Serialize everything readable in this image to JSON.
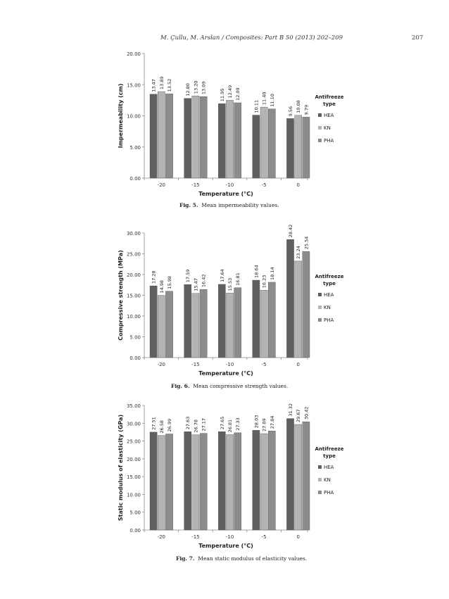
{
  "header": {
    "running_head": "M. Çullu, M. Arslan / Composites: Part B 50 (2013) 202–209",
    "page_number": "207"
  },
  "colors": {
    "HEA": "#5f5f5f",
    "KN": "#b3b3b3",
    "PHA": "#8c8c8c",
    "axis": "#888888"
  },
  "figures": [
    {
      "caption_label": "Fig. 5.",
      "caption_text": "Mean impermeability values."
    },
    {
      "caption_label": "Fig. 6.",
      "caption_text": "Mean compressive strength values."
    },
    {
      "caption_label": "Fig. 7.",
      "caption_text": "Mean static modulus of elasticity values."
    }
  ],
  "chart_data": [
    {
      "type": "bar",
      "categories": [
        "-20",
        "-15",
        "-10",
        "-5",
        "0"
      ],
      "series": [
        {
          "name": "HEA",
          "values": [
            13.47,
            12.8,
            11.95,
            10.11,
            9.56
          ],
          "labels": [
            "13.47",
            "12.80",
            "11.95",
            "10.11",
            "9.56"
          ]
        },
        {
          "name": "KN",
          "values": [
            13.89,
            13.2,
            12.49,
            11.4,
            10.08
          ],
          "labels": [
            "13.89",
            "13.20",
            "12.49",
            "11.40",
            "10.08"
          ]
        },
        {
          "name": "PHA",
          "values": [
            13.52,
            13.09,
            12.09,
            11.1,
            9.79
          ],
          "labels": [
            "13.52",
            "13.09",
            "12.09",
            "11.10",
            "9.79"
          ]
        }
      ],
      "ylabel": "Impermeability (cm)",
      "xlabel": "Temperature (°C)",
      "ylim": [
        0,
        20
      ],
      "yticks": [
        "0.00",
        "5.00",
        "10.00",
        "15.00",
        "20.00"
      ],
      "legend_title": "Antifreeze type",
      "legend_placement": "right",
      "grid": false
    },
    {
      "type": "bar",
      "categories": [
        "-20",
        "-15",
        "-10",
        "-5",
        "0"
      ],
      "series": [
        {
          "name": "HEA",
          "values": [
            17.28,
            17.59,
            17.64,
            18.64,
            28.42
          ],
          "labels": [
            "17.28",
            "17.59",
            "17.64",
            "18.64",
            "28.42"
          ]
        },
        {
          "name": "KN",
          "values": [
            14.98,
            15.47,
            15.53,
            16.23,
            23.24
          ],
          "labels": [
            "14.98",
            "15.47",
            "15.53",
            "16.23",
            "23.24"
          ]
        },
        {
          "name": "PHA",
          "values": [
            15.98,
            16.42,
            16.81,
            18.14,
            25.54
          ],
          "labels": [
            "15.98",
            "16.42",
            "16.81",
            "18.14",
            "25.54"
          ]
        }
      ],
      "ylabel": "Compressive strength (MPa)",
      "xlabel": "Temperature (°C)",
      "ylim": [
        0,
        30
      ],
      "yticks": [
        "0.00",
        "5.00",
        "10.00",
        "15.00",
        "20.00",
        "25.00",
        "30.00"
      ],
      "legend_title": "Antifreeze type",
      "legend_placement": "right",
      "grid": false
    },
    {
      "type": "bar",
      "categories": [
        "-20",
        "-15",
        "-10",
        "-5",
        "0"
      ],
      "series": [
        {
          "name": "HEA",
          "values": [
            27.51,
            27.63,
            27.65,
            28.03,
            31.32
          ],
          "labels": [
            "27.51",
            "27.63",
            "27.65",
            "28.03",
            "31.32"
          ]
        },
        {
          "name": "KN",
          "values": [
            26.58,
            26.78,
            26.81,
            27.09,
            29.67
          ],
          "labels": [
            "26.58",
            "26.78",
            "26.81",
            "27.09",
            "29.67"
          ]
        },
        {
          "name": "PHA",
          "values": [
            26.99,
            27.17,
            27.33,
            27.84,
            30.42
          ],
          "labels": [
            "26.99",
            "27.17",
            "27.33",
            "27.84",
            "30.42"
          ]
        }
      ],
      "ylabel": "Static modulus of elasticity (GPa)",
      "xlabel": "Temperature (°C)",
      "ylim": [
        0,
        35
      ],
      "yticks": [
        "0.00",
        "5.00",
        "10.00",
        "15.00",
        "20.00",
        "25.00",
        "30.00",
        "35.00"
      ],
      "legend_title": "Antifreeze type",
      "legend_placement": "right",
      "grid": false
    }
  ]
}
